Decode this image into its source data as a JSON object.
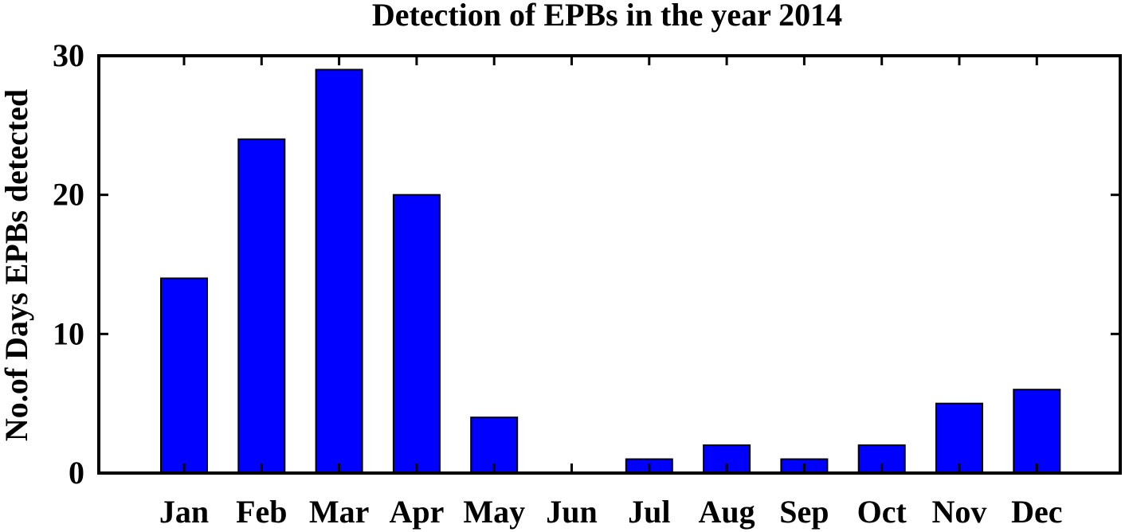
{
  "chart_data": {
    "type": "bar",
    "title": "Detection of EPBs in the year 2014",
    "xlabel": "",
    "ylabel": "No.of Days EPBs detected",
    "categories": [
      "Jan",
      "Feb",
      "Mar",
      "Apr",
      "May",
      "Jun",
      "Jul",
      "Aug",
      "Sep",
      "Oct",
      "Nov",
      "Dec"
    ],
    "values": [
      14,
      24,
      29,
      20,
      4,
      0,
      1,
      2,
      1,
      2,
      5,
      6
    ],
    "ylim": [
      0,
      30
    ],
    "yticks": [
      "0",
      "10",
      "20",
      "30"
    ],
    "bar_color": "#0000ff",
    "grid": false,
    "legend": "none"
  }
}
